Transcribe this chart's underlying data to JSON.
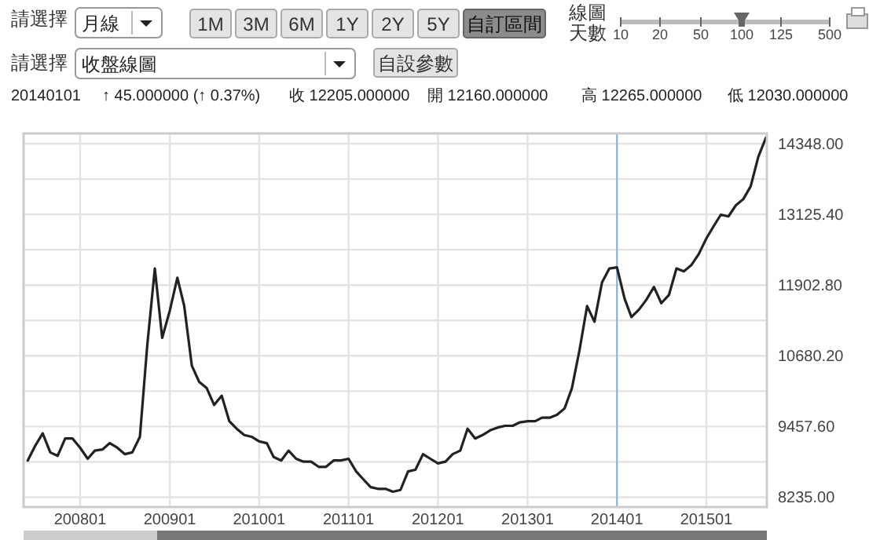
{
  "chart_data": [
    {
      "type": "other",
      "annotations": [
        "請選擇",
        "月線",
        "1M",
        "3M",
        "6M",
        "1Y",
        "2Y",
        "5Y",
        "自訂區間",
        "線圖",
        "天數",
        "10",
        "20",
        "50",
        "100",
        "125",
        "500",
        "請選擇",
        "收盤線圖",
        "自設參數",
        "20140101",
        "↑ 45.000000 (↑ 0.37%)",
        "收 12205.000000",
        "開 12160.000000",
        "高 12265.000000",
        "低 12030.000000"
      ]
    },
    {
      "type": "line",
      "color": "#222222",
      "grid": true,
      "x": [
        "2007-06",
        "2007-07",
        "2007-08",
        "2007-09",
        "2007-10",
        "2007-11",
        "2007-12",
        "2008-01",
        "2008-02",
        "2008-03",
        "2008-04",
        "2008-05",
        "2008-06",
        "2008-07",
        "2008-08",
        "2008-09",
        "2008-10",
        "2008-11",
        "2008-12",
        "2009-01",
        "2009-02",
        "2009-03",
        "2009-04",
        "2009-05",
        "2009-06",
        "2009-07",
        "2009-08",
        "2009-09",
        "2009-10",
        "2009-11",
        "2009-12",
        "2010-01",
        "2010-02",
        "2010-03",
        "2010-04",
        "2010-05",
        "2010-06",
        "2010-07",
        "2010-08",
        "2010-09",
        "2010-10",
        "2010-11",
        "2010-12",
        "2011-01",
        "2011-02",
        "2011-03",
        "2011-04",
        "2011-05",
        "2011-06",
        "2011-07",
        "2011-08",
        "2011-09",
        "2011-10",
        "2011-11",
        "2011-12",
        "2012-01",
        "2012-02",
        "2012-03",
        "2012-04",
        "2012-05",
        "2012-06",
        "2012-07",
        "2012-08",
        "2012-09",
        "2012-10",
        "2012-11",
        "2012-12",
        "2013-01",
        "2013-02",
        "2013-03",
        "2013-04",
        "2013-05",
        "2013-06",
        "2013-07",
        "2013-08",
        "2013-09",
        "2013-10",
        "2013-11",
        "2013-12",
        "2014-01",
        "2014-02",
        "2014-03",
        "2014-04",
        "2014-05",
        "2014-06",
        "2014-07",
        "2014-08",
        "2014-09",
        "2014-10",
        "2014-11",
        "2014-12",
        "2015-01",
        "2015-02",
        "2015-03",
        "2015-04",
        "2015-05",
        "2015-06",
        "2015-07",
        "2015-08",
        "2015-09"
      ],
      "values": [
        8870,
        9120,
        9340,
        9010,
        8950,
        9250,
        9250,
        9090,
        8900,
        9040,
        9060,
        9170,
        9090,
        8980,
        9010,
        9280,
        10860,
        12190,
        10990,
        11460,
        12030,
        11540,
        10510,
        10230,
        10120,
        9830,
        9990,
        9550,
        9420,
        9310,
        9280,
        9200,
        9170,
        8930,
        8870,
        9040,
        8900,
        8850,
        8850,
        8760,
        8760,
        8870,
        8870,
        8900,
        8680,
        8550,
        8410,
        8380,
        8380,
        8330,
        8360,
        8680,
        8710,
        8980,
        8900,
        8820,
        8850,
        8980,
        9040,
        9420,
        9250,
        9310,
        9390,
        9440,
        9470,
        9470,
        9530,
        9550,
        9550,
        9610,
        9610,
        9660,
        9770,
        10120,
        10780,
        11540,
        11270,
        11950,
        12190,
        12210,
        11670,
        11350,
        11480,
        11650,
        11870,
        11590,
        11730,
        12190,
        12140,
        12250,
        12440,
        12710,
        12930,
        13120,
        13090,
        13280,
        13390,
        13610,
        14120,
        14450
      ],
      "xlim": [
        "2007-05-15",
        "2015-09-05"
      ],
      "ylim": [
        8065,
        14525
      ],
      "xticks": [
        {
          "value": "2008-01",
          "label": "200801"
        },
        {
          "value": "2009-01",
          "label": "200901"
        },
        {
          "value": "2010-01",
          "label": "201001"
        },
        {
          "value": "2011-01",
          "label": "201101"
        },
        {
          "value": "2012-01",
          "label": "201201"
        },
        {
          "value": "2013-01",
          "label": "201301"
        },
        {
          "value": "2014-01",
          "label": "201401"
        },
        {
          "value": "2015-01",
          "label": "201501"
        }
      ],
      "yticks": [
        {
          "value": 8235,
          "label": "8235.00"
        },
        {
          "value": 8846.3,
          "label": null
        },
        {
          "value": 9457.6,
          "label": "9457.60"
        },
        {
          "value": 10068.9,
          "label": null
        },
        {
          "value": 10680.2,
          "label": "10680.20"
        },
        {
          "value": 11291.5,
          "label": null
        },
        {
          "value": 11902.8,
          "label": "11902.80"
        },
        {
          "value": 12514.1,
          "label": null
        },
        {
          "value": 13125.4,
          "label": "13125.40"
        },
        {
          "value": 13736.7,
          "label": null
        },
        {
          "value": 14348,
          "label": "14348.00"
        }
      ],
      "ref_lines": [
        {
          "axis": "x",
          "value": "2014-01",
          "color": "#7fb4d8"
        }
      ]
    }
  ]
}
